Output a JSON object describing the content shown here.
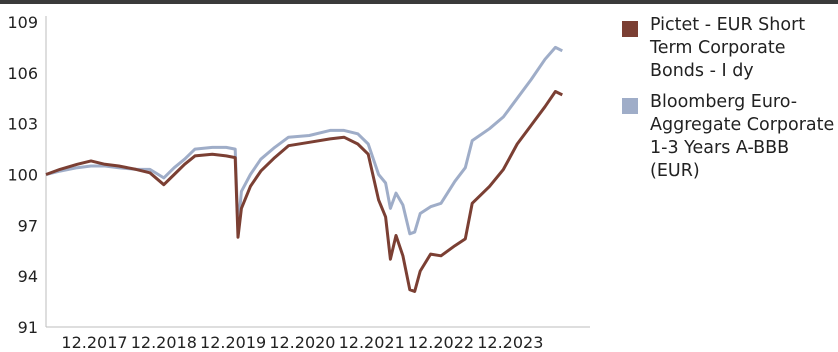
{
  "chart_data": {
    "type": "line",
    "title": "",
    "xlabel": "",
    "ylabel": "",
    "ylim": [
      91,
      109
    ],
    "yticks": [
      109,
      106,
      103,
      100,
      97,
      94,
      91
    ],
    "xlim": [
      2017.0,
      2024.85
    ],
    "xticks": [
      {
        "label": "12.2017",
        "x": 2017.7
      },
      {
        "label": "12.2018",
        "x": 2018.7
      },
      {
        "label": "12.2019",
        "x": 2019.7
      },
      {
        "label": "12.2020",
        "x": 2020.7
      },
      {
        "label": "12.2021",
        "x": 2021.7
      },
      {
        "label": "12.2022",
        "x": 2022.7
      },
      {
        "label": "12.2023",
        "x": 2023.7
      }
    ],
    "grid": false,
    "legend_position": "right",
    "series": [
      {
        "name": "Pictet - EUR Short Term Corporate Bonds - I dy",
        "color": "#7b3f33",
        "points": [
          [
            2017.0,
            100.0
          ],
          [
            2017.2,
            100.3
          ],
          [
            2017.45,
            100.6
          ],
          [
            2017.65,
            100.8
          ],
          [
            2017.85,
            100.6
          ],
          [
            2018.05,
            100.5
          ],
          [
            2018.3,
            100.3
          ],
          [
            2018.5,
            100.1
          ],
          [
            2018.7,
            99.4
          ],
          [
            2018.85,
            100.0
          ],
          [
            2019.0,
            100.6
          ],
          [
            2019.15,
            101.1
          ],
          [
            2019.4,
            101.2
          ],
          [
            2019.6,
            101.1
          ],
          [
            2019.73,
            101.0
          ],
          [
            2019.77,
            96.3
          ],
          [
            2019.82,
            98.0
          ],
          [
            2019.95,
            99.3
          ],
          [
            2020.1,
            100.2
          ],
          [
            2020.3,
            101.0
          ],
          [
            2020.5,
            101.7
          ],
          [
            2020.8,
            101.9
          ],
          [
            2021.1,
            102.1
          ],
          [
            2021.3,
            102.2
          ],
          [
            2021.5,
            101.8
          ],
          [
            2021.65,
            101.2
          ],
          [
            2021.8,
            98.5
          ],
          [
            2021.9,
            97.5
          ],
          [
            2021.97,
            95.0
          ],
          [
            2022.05,
            96.4
          ],
          [
            2022.15,
            95.2
          ],
          [
            2022.25,
            93.2
          ],
          [
            2022.32,
            93.1
          ],
          [
            2022.4,
            94.3
          ],
          [
            2022.55,
            95.3
          ],
          [
            2022.7,
            95.2
          ],
          [
            2022.9,
            95.8
          ],
          [
            2023.05,
            96.2
          ],
          [
            2023.15,
            98.3
          ],
          [
            2023.4,
            99.3
          ],
          [
            2023.6,
            100.3
          ],
          [
            2023.8,
            101.8
          ],
          [
            2024.0,
            102.9
          ],
          [
            2024.2,
            104.0
          ],
          [
            2024.35,
            104.9
          ],
          [
            2024.45,
            104.7
          ]
        ]
      },
      {
        "name": "Bloomberg Euro-Aggregate Corporate 1-3 Years A-BBB (EUR)",
        "color": "#9fadc8",
        "points": [
          [
            2017.0,
            100.0
          ],
          [
            2017.2,
            100.2
          ],
          [
            2017.45,
            100.4
          ],
          [
            2017.65,
            100.5
          ],
          [
            2017.85,
            100.5
          ],
          [
            2018.05,
            100.4
          ],
          [
            2018.3,
            100.3
          ],
          [
            2018.5,
            100.3
          ],
          [
            2018.7,
            99.8
          ],
          [
            2018.85,
            100.4
          ],
          [
            2019.0,
            100.9
          ],
          [
            2019.15,
            101.5
          ],
          [
            2019.4,
            101.6
          ],
          [
            2019.6,
            101.6
          ],
          [
            2019.73,
            101.5
          ],
          [
            2019.77,
            96.8
          ],
          [
            2019.82,
            99.0
          ],
          [
            2019.95,
            100.0
          ],
          [
            2020.1,
            100.9
          ],
          [
            2020.3,
            101.6
          ],
          [
            2020.5,
            102.2
          ],
          [
            2020.8,
            102.3
          ],
          [
            2021.1,
            102.6
          ],
          [
            2021.3,
            102.6
          ],
          [
            2021.5,
            102.4
          ],
          [
            2021.65,
            101.8
          ],
          [
            2021.8,
            100.0
          ],
          [
            2021.9,
            99.5
          ],
          [
            2021.97,
            98.0
          ],
          [
            2022.05,
            98.9
          ],
          [
            2022.15,
            98.2
          ],
          [
            2022.25,
            96.5
          ],
          [
            2022.32,
            96.6
          ],
          [
            2022.4,
            97.7
          ],
          [
            2022.55,
            98.1
          ],
          [
            2022.7,
            98.3
          ],
          [
            2022.9,
            99.6
          ],
          [
            2023.05,
            100.4
          ],
          [
            2023.15,
            102.0
          ],
          [
            2023.4,
            102.7
          ],
          [
            2023.6,
            103.4
          ],
          [
            2023.8,
            104.5
          ],
          [
            2024.0,
            105.6
          ],
          [
            2024.2,
            106.8
          ],
          [
            2024.35,
            107.5
          ],
          [
            2024.45,
            107.3
          ]
        ]
      }
    ]
  }
}
